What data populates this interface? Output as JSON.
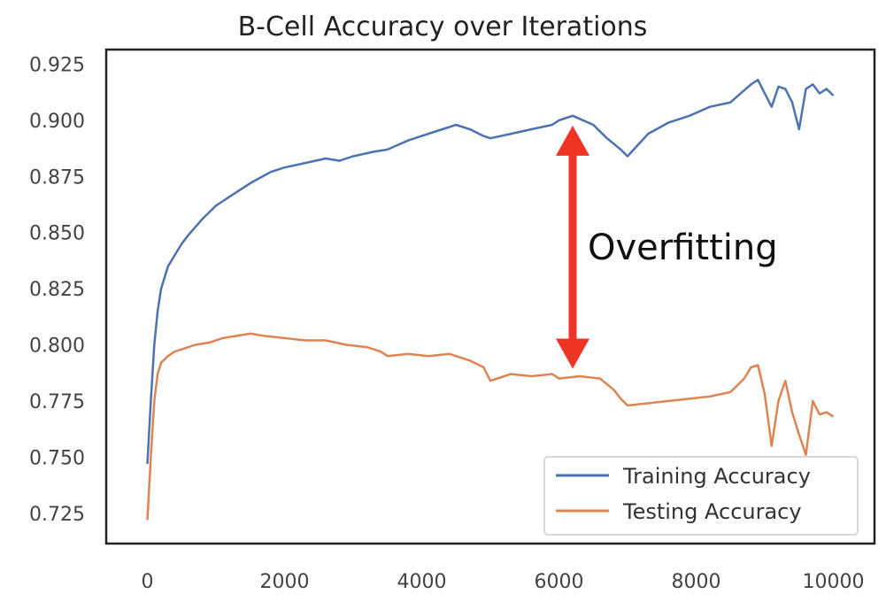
{
  "chart_data": {
    "type": "line",
    "title": "B-Cell Accuracy over Iterations",
    "xlabel": "",
    "ylabel": "",
    "xlim": [
      -600,
      10600
    ],
    "ylim": [
      0.7115,
      0.9315
    ],
    "xticks": [
      0,
      2000,
      4000,
      6000,
      8000,
      10000
    ],
    "xtick_labels": [
      "0",
      "2000",
      "4000",
      "6000",
      "8000",
      "10000"
    ],
    "yticks": [
      0.725,
      0.75,
      0.775,
      0.8,
      0.825,
      0.85,
      0.875,
      0.9,
      0.925
    ],
    "ytick_labels": [
      "0.725",
      "0.750",
      "0.775",
      "0.800",
      "0.825",
      "0.850",
      "0.875",
      "0.900",
      "0.925"
    ],
    "grid": false,
    "legend_position": "bottom-right",
    "series": [
      {
        "name": "Training Accuracy",
        "color": "#4c72b0",
        "x": [
          0,
          50,
          100,
          150,
          200,
          300,
          400,
          500,
          600,
          800,
          1000,
          1200,
          1500,
          1800,
          2000,
          2300,
          2600,
          2800,
          3000,
          3300,
          3500,
          3800,
          4000,
          4300,
          4500,
          4700,
          4900,
          5000,
          5300,
          5600,
          5900,
          6000,
          6200,
          6500,
          6700,
          6900,
          7000,
          7300,
          7600,
          7900,
          8200,
          8500,
          8800,
          8900,
          9000,
          9100,
          9200,
          9300,
          9400,
          9500,
          9600,
          9700,
          9800,
          9900,
          10000
        ],
        "y": [
          0.747,
          0.775,
          0.8,
          0.815,
          0.825,
          0.835,
          0.84,
          0.845,
          0.849,
          0.856,
          0.862,
          0.866,
          0.872,
          0.877,
          0.879,
          0.881,
          0.883,
          0.882,
          0.884,
          0.886,
          0.887,
          0.891,
          0.893,
          0.896,
          0.898,
          0.896,
          0.893,
          0.892,
          0.894,
          0.896,
          0.898,
          0.9,
          0.902,
          0.898,
          0.892,
          0.887,
          0.884,
          0.894,
          0.899,
          0.902,
          0.906,
          0.908,
          0.916,
          0.918,
          0.912,
          0.906,
          0.915,
          0.914,
          0.908,
          0.896,
          0.914,
          0.916,
          0.912,
          0.914,
          0.911
        ]
      },
      {
        "name": "Testing Accuracy",
        "color": "#dd8452",
        "x": [
          0,
          50,
          100,
          150,
          200,
          300,
          400,
          500,
          700,
          900,
          1100,
          1300,
          1500,
          1700,
          2000,
          2300,
          2600,
          2900,
          3200,
          3400,
          3500,
          3800,
          4100,
          4400,
          4700,
          4900,
          5000,
          5300,
          5600,
          5900,
          6000,
          6300,
          6600,
          6800,
          6900,
          7000,
          7300,
          7600,
          7900,
          8200,
          8500,
          8700,
          8800,
          8900,
          9000,
          9100,
          9200,
          9300,
          9400,
          9500,
          9600,
          9700,
          9800,
          9900,
          10000
        ],
        "y": [
          0.722,
          0.75,
          0.775,
          0.787,
          0.792,
          0.795,
          0.797,
          0.798,
          0.8,
          0.801,
          0.803,
          0.804,
          0.805,
          0.804,
          0.803,
          0.802,
          0.802,
          0.8,
          0.799,
          0.797,
          0.795,
          0.796,
          0.795,
          0.796,
          0.793,
          0.79,
          0.784,
          0.787,
          0.786,
          0.787,
          0.785,
          0.786,
          0.785,
          0.78,
          0.776,
          0.773,
          0.774,
          0.775,
          0.776,
          0.777,
          0.779,
          0.785,
          0.79,
          0.791,
          0.778,
          0.755,
          0.775,
          0.784,
          0.77,
          0.76,
          0.751,
          0.775,
          0.769,
          0.77,
          0.768
        ]
      }
    ],
    "annotations": [
      {
        "text": "Overfitting",
        "type": "double-arrow",
        "x": 6200,
        "y_from": 0.787,
        "y_to": 0.9,
        "color": "#ee3424"
      }
    ]
  }
}
